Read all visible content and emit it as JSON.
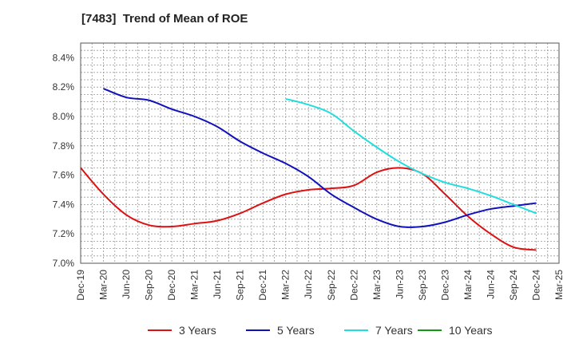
{
  "chart_data": {
    "type": "line",
    "title": "[7483]  Trend of Mean of ROE",
    "xlabel": "",
    "ylabel": "",
    "categories": [
      "Dec-19",
      "Mar-20",
      "Jun-20",
      "Sep-20",
      "Dec-20",
      "Mar-21",
      "Jun-21",
      "Sep-21",
      "Dec-21",
      "Mar-22",
      "Jun-22",
      "Sep-22",
      "Dec-22",
      "Mar-23",
      "Jun-23",
      "Sep-23",
      "Dec-23",
      "Mar-24",
      "Jun-24",
      "Sep-24",
      "Dec-24",
      "Mar-25"
    ],
    "ylim": [
      7.0,
      8.5
    ],
    "y_ticks": [
      7.0,
      7.2,
      7.4,
      7.6,
      7.8,
      8.0,
      8.2,
      8.4
    ],
    "y_tick_labels": [
      "7.0%",
      "7.2%",
      "7.4%",
      "7.6%",
      "7.8%",
      "8.0%",
      "8.2%",
      "8.4%"
    ],
    "grid": true,
    "legend_position": "bottom",
    "series": [
      {
        "name": "3 Years",
        "color": "#dd1111",
        "values": [
          7.65,
          7.47,
          7.33,
          7.26,
          7.25,
          7.27,
          7.29,
          7.34,
          7.41,
          7.47,
          7.5,
          7.51,
          7.53,
          7.62,
          7.65,
          7.61,
          7.47,
          7.32,
          7.2,
          7.11,
          7.09,
          null
        ]
      },
      {
        "name": "5 Years",
        "color": "#1111bb",
        "values": [
          null,
          8.19,
          8.13,
          8.11,
          8.05,
          8.0,
          7.93,
          7.83,
          7.75,
          7.68,
          7.59,
          7.47,
          7.38,
          7.3,
          7.25,
          7.25,
          7.28,
          7.33,
          7.37,
          7.39,
          7.41,
          null
        ]
      },
      {
        "name": "7 Years",
        "color": "#22dddd",
        "values": [
          null,
          null,
          null,
          null,
          null,
          null,
          null,
          null,
          null,
          8.12,
          8.08,
          8.02,
          7.9,
          7.79,
          7.69,
          7.61,
          7.55,
          7.51,
          7.46,
          7.4,
          7.34,
          null
        ]
      },
      {
        "name": "10 Years",
        "color": "#119911",
        "values": [
          null,
          null,
          null,
          null,
          null,
          null,
          null,
          null,
          null,
          null,
          null,
          null,
          null,
          null,
          null,
          null,
          null,
          null,
          null,
          null,
          null,
          null
        ]
      }
    ]
  }
}
